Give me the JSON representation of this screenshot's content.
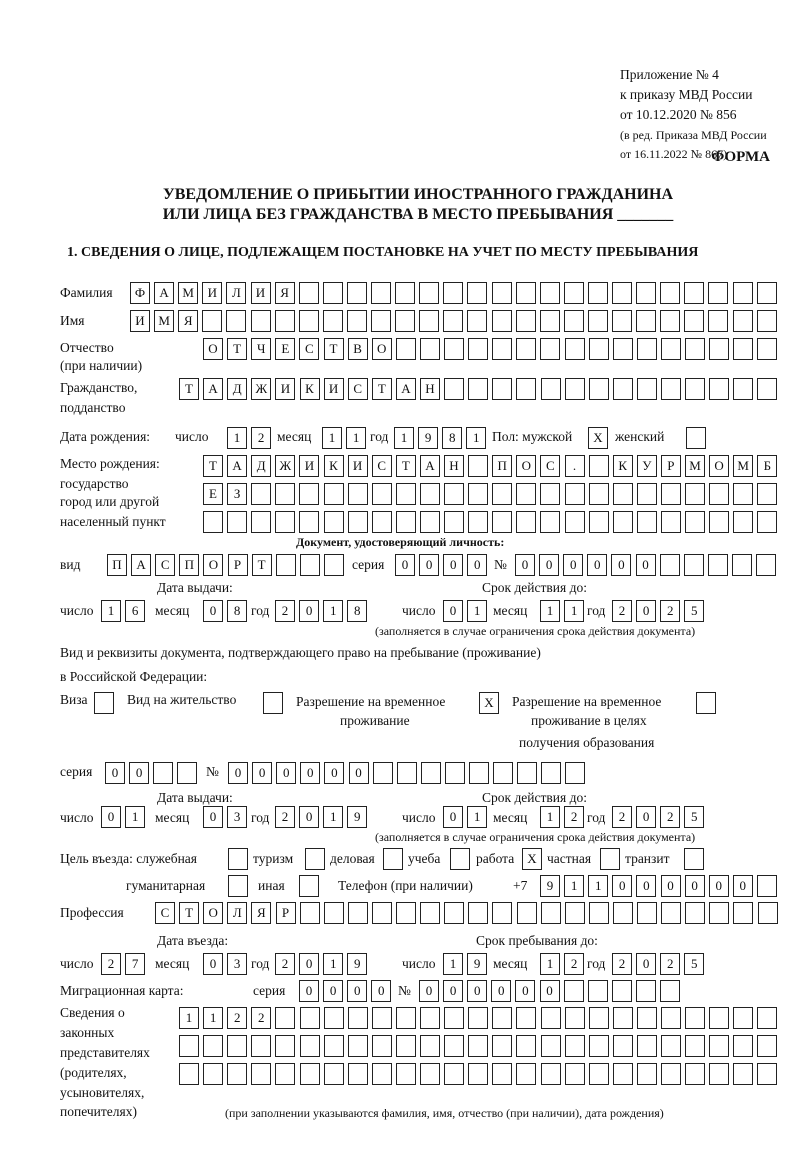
{
  "header": {
    "line1": "Приложение № 4",
    "line2": "к приказу МВД России",
    "line3": "от 10.12.2020 № 856",
    "line4": "(в ред. Приказа МВД России",
    "line5": "от 16.11.2022 № 867)",
    "form": "ФОРМА"
  },
  "title": {
    "line1": "УВЕДОМЛЕНИЕ О ПРИБЫТИИ ИНОСТРАННОГО ГРАЖДАНИНА",
    "line2": "ИЛИ ЛИЦА БЕЗ ГРАЖДАНСТВА В МЕСТО ПРЕБЫВАНИЯ _______"
  },
  "section1": "1. СВЕДЕНИЯ О ЛИЦЕ, ПОДЛЕЖАЩЕМ ПОСТАНОВКЕ НА УЧЕТ ПО МЕСТУ ПРЕБЫВАНИЯ",
  "labels": {
    "surname": "Фамилия",
    "name": "Имя",
    "patronymic": "Отчество",
    "patronymic2": "(при наличии)",
    "citizenship": "Гражданство,",
    "citizenship2": "подданство",
    "birthdate": "Дата рождения:",
    "day": "число",
    "month": "месяц",
    "year": "год",
    "sex": "Пол: мужской",
    "female": "женский",
    "birthplace": "Место рождения:",
    "birthplace2": "государство",
    "birthplace3": "город или другой",
    "birthplace4": "населенный пункт",
    "id_doc": "Документ, удостоверяющий личность:",
    "kind": "вид",
    "series": "серия",
    "number": "№",
    "issue_date": "Дата выдачи:",
    "valid_until": "Срок действия до:",
    "validity_note": "(заполняется в случае ограничения срока действия документа)",
    "right_doc": "Вид и реквизиты документа, подтверждающего право на пребывание (проживание)",
    "right_doc2": "в Российской Федерации:",
    "visa": "Виза",
    "residence": "Вид на жительство",
    "temp": "Разрешение на временное",
    "temp2": "проживание",
    "temp_edu": "Разрешение на временное",
    "temp_edu2": "проживание в целях",
    "temp_edu3": "получения образования",
    "purpose": "Цель въезда: служебная",
    "tourism": "туризм",
    "business": "деловая",
    "study": "учеба",
    "work": "работа",
    "private": "частная",
    "transit": "транзит",
    "humanitarian": "гуманитарная",
    "other": "иная",
    "phone": "Телефон (при наличии)",
    "phone_prefix": "+7",
    "profession": "Профессия",
    "entry_date": "Дата въезда:",
    "stay_until": "Срок пребывания до:",
    "migration_card": "Миграционная карта:",
    "reps": "Сведения о",
    "reps2": "законных",
    "reps3": "представителях",
    "reps4": "(родителях,",
    "reps5": "усыновителях,",
    "reps6": "попечителях)",
    "reps_note": "(при заполнении указываются фамилия, имя, отчество (при наличии), дата рождения)"
  },
  "fields": {
    "surname": "ФАМИЛИЯ",
    "name": "ИМЯ",
    "patronymic": "ОТЧЕСТВО",
    "citizenship": "ТАДЖИКИСТАН",
    "birth_day": "12",
    "birth_month": "11",
    "birth_year": "1981",
    "sex_male": "X",
    "sex_female": "",
    "birthplace1": "ТАДЖИКИСТАН ПОС. КУРМОМБ",
    "birthplace2": "ЕЗ",
    "birthplace3": "",
    "doc_kind": "ПАСПОРТ",
    "doc_series": "0000",
    "doc_number": "000000",
    "doc_issue_day": "16",
    "doc_issue_month": "08",
    "doc_issue_year": "2018",
    "doc_valid_day": "01",
    "doc_valid_month": "11",
    "doc_valid_year": "2025",
    "visa": "",
    "residence": "",
    "temp_residence": "X",
    "temp_edu": "",
    "right_series": "00",
    "right_number": "000000",
    "right_issue_day": "01",
    "right_issue_month": "03",
    "right_issue_year": "2019",
    "right_valid_day": "01",
    "right_valid_month": "12",
    "right_valid_year": "2025",
    "p_official": "",
    "p_tourism": "",
    "p_business": "",
    "p_study": "",
    "p_work": "X",
    "p_private": "",
    "p_transit": "",
    "p_humanitarian": "",
    "p_other": "",
    "phone": "911000000",
    "profession": "СТОЛЯР",
    "entry_day": "27",
    "entry_month": "03",
    "entry_year": "2019",
    "stay_day": "19",
    "stay_month": "12",
    "stay_year": "2025",
    "mc_series": "0000",
    "mc_number": "000000",
    "reps1": "1122",
    "reps2": "",
    "reps3": ""
  }
}
